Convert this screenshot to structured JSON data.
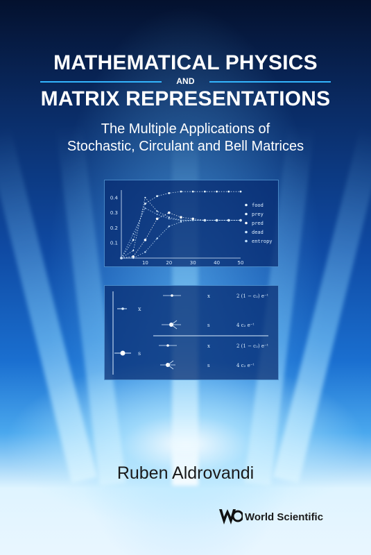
{
  "title": {
    "line1": "MATHEMATICAL PHYSICS",
    "connector": "AND",
    "line2": "MATRIX REPRESENTATIONS"
  },
  "subtitle": {
    "line1": "The Multiple Applications of",
    "line2": "Stochastic, Circulant and Bell Matrices"
  },
  "author": "Ruben Aldrovandi",
  "publisher": "World Scientific",
  "colors": {
    "accent_rule": "#33b6ff",
    "title": "#ffffff",
    "author": "#1a1a1a"
  },
  "chart_data": {
    "type": "line",
    "x": [
      0,
      5,
      10,
      15,
      20,
      25,
      30,
      35,
      40,
      45,
      50
    ],
    "xticks": [
      "10",
      "20",
      "30",
      "40",
      "50"
    ],
    "yticks": [
      "0.1",
      "0.2",
      "0.3",
      "0.4"
    ],
    "xlim": [
      0,
      50
    ],
    "ylim": [
      0,
      0.45
    ],
    "legend_position": "right",
    "series": [
      {
        "name": "food",
        "values": [
          0,
          0.12,
          0.36,
          0.41,
          0.43,
          0.44,
          0.44,
          0.44,
          0.44,
          0.44,
          0.44
        ]
      },
      {
        "name": "prey",
        "values": [
          0,
          0.05,
          0.4,
          0.31,
          0.27,
          0.25,
          0.25,
          0.25,
          0.25,
          0.25,
          0.25
        ]
      },
      {
        "name": "pred",
        "values": [
          0,
          0.01,
          0.12,
          0.26,
          0.3,
          0.27,
          0.26,
          0.25,
          0.25,
          0.25,
          0.25
        ]
      },
      {
        "name": "dead",
        "values": [
          0,
          0.0,
          0.04,
          0.13,
          0.21,
          0.24,
          0.25,
          0.25,
          0.25,
          0.25,
          0.25
        ]
      },
      {
        "name": "entropy",
        "values": [
          0,
          0.16,
          0.33,
          0.29,
          0.26,
          0.25,
          0.25,
          0.25,
          0.25,
          0.25,
          0.25
        ]
      }
    ]
  },
  "diagram": {
    "left_labels": [
      "x",
      "s"
    ],
    "rows": [
      {
        "op": "x",
        "expr": "2 (1 − c₂) e⁻ᵗ"
      },
      {
        "op": "s",
        "expr": "4 c₂ e⁻ᵗ"
      },
      {
        "op": "x",
        "expr": "2 (1 − c₂) e⁻ᵗ"
      },
      {
        "op": "s",
        "expr": "4 c₂ e⁻ᵗ"
      }
    ]
  }
}
